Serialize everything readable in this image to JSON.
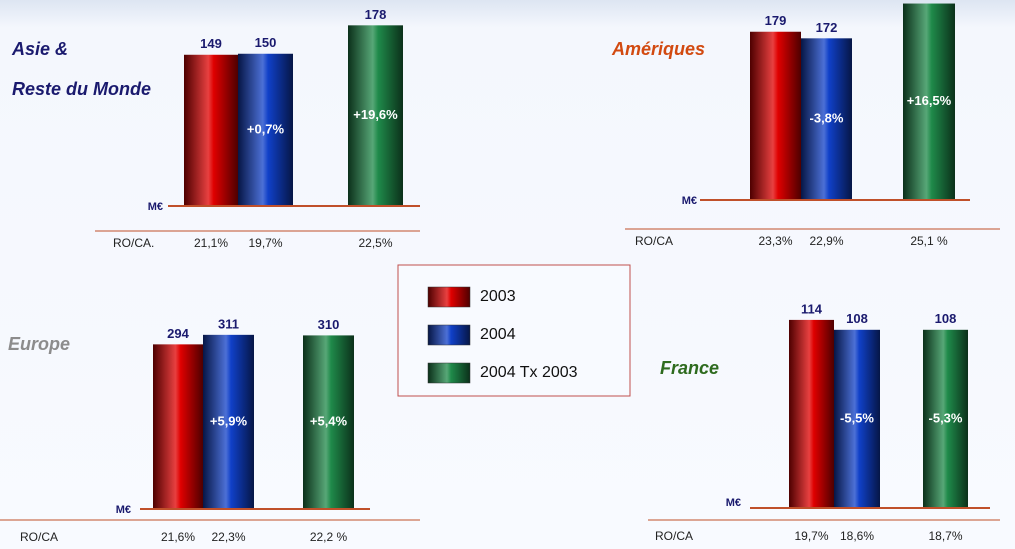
{
  "legend": {
    "labels": [
      "2003",
      "2004",
      "2004 Tx 2003"
    ],
    "colors": [
      "#e00000",
      "#1040c8",
      "#1f8a4a"
    ]
  },
  "chart_data": [
    {
      "type": "bar",
      "title": [
        "Asie &",
        "Reste du Monde"
      ],
      "title_color": "#1a1a6e",
      "unit": "M€",
      "values": [
        149,
        150,
        178
      ],
      "change_labels": [
        null,
        "+0,7%",
        "+19,6%"
      ],
      "ylim": [
        0,
        200
      ],
      "ratio_label": "RO/CA.",
      "ratios": [
        "21,1%",
        "19,7%",
        "22,5%"
      ]
    },
    {
      "type": "bar",
      "title": [
        "Amériques"
      ],
      "title_color": "#d24a10",
      "unit": "M€",
      "values": [
        179,
        172,
        209
      ],
      "change_labels": [
        null,
        "-3,8%",
        "+16,5%"
      ],
      "ylim": [
        0,
        200
      ],
      "ratio_label": "RO/CA",
      "ratios": [
        "23,3%",
        "22,9%",
        "25,1 %"
      ]
    },
    {
      "type": "bar",
      "title": [
        "Europe"
      ],
      "title_color": "#8c8c8c",
      "unit": "M€",
      "values": [
        294,
        311,
        310
      ],
      "change_labels": [
        null,
        "+5,9%",
        "+5,4%"
      ],
      "ylim": [
        0,
        350
      ],
      "ratio_label": "RO/CA",
      "ratios": [
        "21,6%",
        "22,3%",
        "22,2 %"
      ]
    },
    {
      "type": "bar",
      "title": [
        "France"
      ],
      "title_color": "#2e6b1e",
      "unit": "M€",
      "values": [
        114,
        108,
        108
      ],
      "change_labels": [
        null,
        "-5,5%",
        "-5,3%"
      ],
      "ylim": [
        0,
        120
      ],
      "ratio_label": "RO/CA",
      "ratios": [
        "19,7%",
        "18,6%",
        "18,7%"
      ]
    }
  ]
}
